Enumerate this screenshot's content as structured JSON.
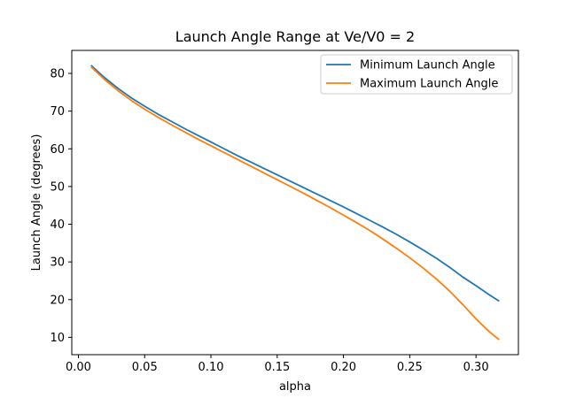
{
  "chart_data": {
    "type": "line",
    "title": "Launch Angle Range at Ve/V0 = 2",
    "xlabel": "alpha",
    "ylabel": "Launch Angle (degrees)",
    "xlim": [
      -0.005,
      0.332
    ],
    "ylim": [
      5.4,
      86.1
    ],
    "xticks": [
      0.0,
      0.05,
      0.1,
      0.15,
      0.2,
      0.25,
      0.3
    ],
    "xtick_labels": [
      "0.00",
      "0.05",
      "0.10",
      "0.15",
      "0.20",
      "0.25",
      "0.30"
    ],
    "yticks": [
      10,
      20,
      30,
      40,
      50,
      60,
      70,
      80
    ],
    "ytick_labels": [
      "10",
      "20",
      "30",
      "40",
      "50",
      "60",
      "70",
      "80"
    ],
    "grid": false,
    "legend_position": "top-right",
    "series": [
      {
        "name": "Minimum Launch Angle",
        "color": "#1f77b4",
        "x": [
          0.01,
          0.02,
          0.03,
          0.04,
          0.05,
          0.06,
          0.07,
          0.08,
          0.09,
          0.1,
          0.11,
          0.12,
          0.13,
          0.14,
          0.15,
          0.16,
          0.17,
          0.18,
          0.19,
          0.2,
          0.21,
          0.22,
          0.23,
          0.24,
          0.25,
          0.26,
          0.27,
          0.28,
          0.29,
          0.3,
          0.31,
          0.317
        ],
        "y": [
          82.0,
          78.8,
          76.0,
          73.5,
          71.3,
          69.2,
          67.3,
          65.4,
          63.6,
          61.8,
          60.0,
          58.2,
          56.5,
          54.8,
          53.1,
          51.4,
          49.7,
          48.0,
          46.3,
          44.6,
          42.8,
          41.0,
          39.2,
          37.3,
          35.3,
          33.2,
          31.0,
          28.6,
          26.0,
          23.7,
          21.3,
          19.7
        ]
      },
      {
        "name": "Maximum Launch Angle",
        "color": "#ff7f0e",
        "x": [
          0.01,
          0.02,
          0.03,
          0.04,
          0.05,
          0.06,
          0.07,
          0.08,
          0.09,
          0.1,
          0.11,
          0.12,
          0.13,
          0.14,
          0.15,
          0.16,
          0.17,
          0.18,
          0.19,
          0.2,
          0.21,
          0.22,
          0.23,
          0.24,
          0.25,
          0.26,
          0.27,
          0.28,
          0.29,
          0.3,
          0.31,
          0.317
        ],
        "y": [
          81.6,
          78.3,
          75.4,
          72.8,
          70.5,
          68.4,
          66.4,
          64.5,
          62.6,
          60.8,
          59.0,
          57.2,
          55.4,
          53.6,
          51.8,
          50.0,
          48.2,
          46.3,
          44.4,
          42.4,
          40.4,
          38.3,
          36.0,
          33.6,
          31.1,
          28.4,
          25.5,
          22.3,
          18.7,
          14.9,
          11.5,
          9.5
        ]
      }
    ]
  }
}
